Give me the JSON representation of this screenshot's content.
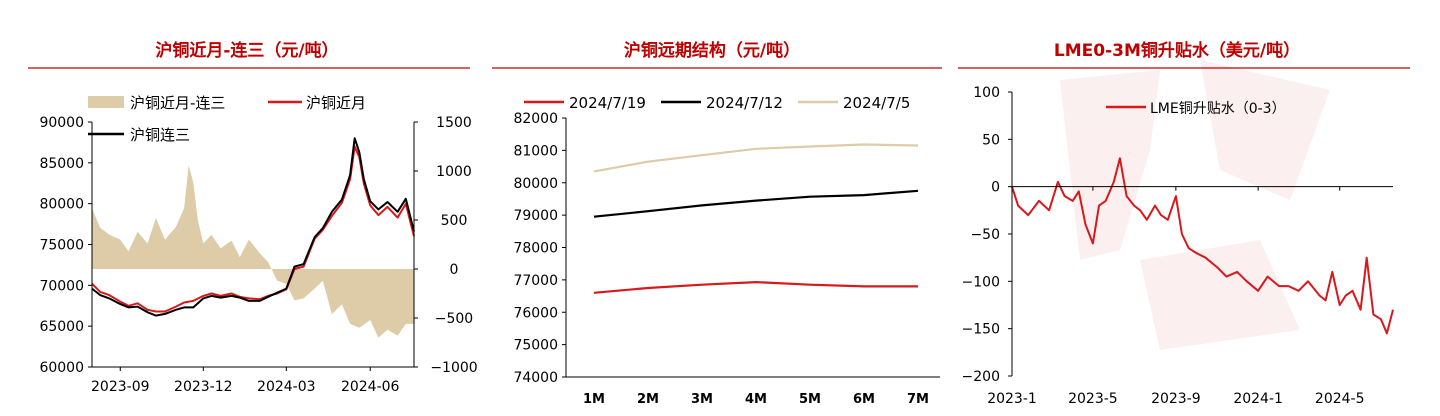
{
  "colors": {
    "title_red": "#C00000",
    "red_line": "#D7191C",
    "black_line": "#000000",
    "beige": "#DECBA8",
    "rule": "#C00000"
  },
  "chart_data": [
    {
      "type": "line",
      "title": "沪铜近月-连三（元/吨）",
      "xlabel": "",
      "ylabel": "",
      "x_ticks": [
        "2023-09",
        "2023-12",
        "2024-03",
        "2024-06"
      ],
      "y_ticks_left": [
        "90000",
        "85000",
        "80000",
        "75000",
        "70000",
        "65000",
        "60000"
      ],
      "y_ticks_right": [
        "1500",
        "1000",
        "500",
        "0",
        "−500",
        "−1000"
      ],
      "ylim_left": [
        60000,
        90000
      ],
      "ylim_right": [
        -1000,
        1500
      ],
      "xlim": [
        "2023-08-01",
        "2024-07-19"
      ],
      "legend_placement": "top-left",
      "series": [
        {
          "name": "沪铜近月-连三",
          "kind": "area",
          "axis": "right",
          "color": "#DECBA8",
          "x": [
            "2023-08-01",
            "2023-08-10",
            "2023-08-20",
            "2023-09-01",
            "2023-09-10",
            "2023-09-20",
            "2023-10-01",
            "2023-10-10",
            "2023-10-20",
            "2023-11-01",
            "2023-11-10",
            "2023-11-15",
            "2023-11-20",
            "2023-11-25",
            "2023-12-01",
            "2023-12-10",
            "2023-12-20",
            "2024-01-01",
            "2024-01-10",
            "2024-01-20",
            "2024-02-01",
            "2024-02-10",
            "2024-02-20",
            "2024-03-01",
            "2024-03-10",
            "2024-03-20",
            "2024-04-01",
            "2024-04-10",
            "2024-04-20",
            "2024-05-01",
            "2024-05-10",
            "2024-05-20",
            "2024-06-01",
            "2024-06-10",
            "2024-06-20",
            "2024-07-01",
            "2024-07-10",
            "2024-07-19"
          ],
          "values": [
            620,
            420,
            350,
            300,
            180,
            380,
            260,
            520,
            300,
            430,
            620,
            1060,
            880,
            500,
            260,
            350,
            210,
            290,
            120,
            300,
            160,
            70,
            -120,
            -150,
            -320,
            -300,
            -200,
            -120,
            -460,
            -360,
            -560,
            -600,
            -520,
            -700,
            -620,
            -680,
            -560,
            -560
          ]
        },
        {
          "name": "沪铜近月",
          "kind": "line",
          "axis": "left",
          "color": "#D7191C",
          "x": [
            "2023-08-01",
            "2023-08-10",
            "2023-08-20",
            "2023-09-01",
            "2023-09-10",
            "2023-09-20",
            "2023-10-01",
            "2023-10-10",
            "2023-10-20",
            "2023-11-01",
            "2023-11-10",
            "2023-11-20",
            "2023-12-01",
            "2023-12-10",
            "2023-12-20",
            "2024-01-01",
            "2024-01-10",
            "2024-01-20",
            "2024-02-01",
            "2024-02-10",
            "2024-02-20",
            "2024-03-01",
            "2024-03-10",
            "2024-03-20",
            "2024-04-01",
            "2024-04-10",
            "2024-04-20",
            "2024-05-01",
            "2024-05-10",
            "2024-05-15",
            "2024-05-20",
            "2024-05-25",
            "2024-06-01",
            "2024-06-10",
            "2024-06-20",
            "2024-07-01",
            "2024-07-10",
            "2024-07-19"
          ],
          "values": [
            70200,
            69200,
            68800,
            68000,
            67500,
            67800,
            67000,
            66800,
            66800,
            67400,
            67900,
            68100,
            68700,
            69000,
            68700,
            69000,
            68600,
            68400,
            68300,
            68700,
            69000,
            69500,
            72000,
            72300,
            75700,
            76800,
            78500,
            80100,
            83000,
            87000,
            85700,
            82500,
            79800,
            78600,
            79600,
            78300,
            80000,
            76000
          ]
        },
        {
          "name": "沪铜连三",
          "kind": "line",
          "axis": "left",
          "color": "#000000",
          "x": [
            "2023-08-01",
            "2023-08-10",
            "2023-08-20",
            "2023-09-01",
            "2023-09-10",
            "2023-09-20",
            "2023-10-01",
            "2023-10-10",
            "2023-10-20",
            "2023-11-01",
            "2023-11-10",
            "2023-11-20",
            "2023-12-01",
            "2023-12-10",
            "2023-12-20",
            "2024-01-01",
            "2024-01-10",
            "2024-01-20",
            "2024-02-01",
            "2024-02-10",
            "2024-02-20",
            "2024-03-01",
            "2024-03-10",
            "2024-03-20",
            "2024-04-01",
            "2024-04-10",
            "2024-04-20",
            "2024-05-01",
            "2024-05-10",
            "2024-05-15",
            "2024-05-20",
            "2024-05-25",
            "2024-06-01",
            "2024-06-10",
            "2024-06-20",
            "2024-07-01",
            "2024-07-10",
            "2024-07-19"
          ],
          "values": [
            69600,
            68800,
            68400,
            67700,
            67300,
            67400,
            66700,
            66300,
            66500,
            67000,
            67300,
            67300,
            68400,
            68700,
            68500,
            68700,
            68500,
            68100,
            68100,
            68600,
            69100,
            69600,
            72300,
            72600,
            75900,
            77000,
            79000,
            80500,
            83500,
            88000,
            86300,
            83000,
            80300,
            79300,
            80200,
            79000,
            80600,
            76600
          ]
        }
      ]
    },
    {
      "type": "line",
      "title": "沪铜远期结构（元/吨）",
      "xlabel": "",
      "ylabel": "",
      "categories": [
        "1M",
        "2M",
        "3M",
        "4M",
        "5M",
        "6M",
        "7M"
      ],
      "y_ticks": [
        "82000",
        "81000",
        "80000",
        "79000",
        "78000",
        "77000",
        "76000",
        "75000",
        "74000"
      ],
      "ylim": [
        74000,
        82000
      ],
      "legend_placement": "top",
      "series": [
        {
          "name": "2024/7/19",
          "color": "#D7191C",
          "values": [
            76600,
            76750,
            76850,
            76930,
            76850,
            76800,
            76800
          ]
        },
        {
          "name": "2024/7/12",
          "color": "#000000",
          "values": [
            78950,
            79120,
            79300,
            79450,
            79570,
            79620,
            79750
          ]
        },
        {
          "name": "2024/7/5",
          "color": "#DECBA8",
          "values": [
            80350,
            80650,
            80850,
            81050,
            81120,
            81180,
            81150
          ]
        }
      ]
    },
    {
      "type": "line",
      "title": "LME0-3M铜升贴水（美元/吨）",
      "xlabel": "",
      "ylabel": "",
      "x_ticks": [
        "2023-1",
        "2023-5",
        "2023-9",
        "2024-1",
        "2024-5"
      ],
      "y_ticks": [
        "100",
        "50",
        "0",
        "−50",
        "−100",
        "−150",
        "−200"
      ],
      "ylim": [
        -200,
        100
      ],
      "xlim": [
        "2023-01-01",
        "2024-07-19"
      ],
      "legend_placement": "top-center",
      "series": [
        {
          "name": "LME铜升贴水（0-3）",
          "color": "#D7191C",
          "x": [
            "2023-01-01",
            "2023-01-10",
            "2023-01-25",
            "2023-02-10",
            "2023-02-25",
            "2023-03-10",
            "2023-03-20",
            "2023-04-01",
            "2023-04-10",
            "2023-04-20",
            "2023-05-01",
            "2023-05-10",
            "2023-05-20",
            "2023-06-01",
            "2023-06-10",
            "2023-06-20",
            "2023-07-01",
            "2023-07-10",
            "2023-07-20",
            "2023-08-01",
            "2023-08-10",
            "2023-08-20",
            "2023-09-01",
            "2023-09-10",
            "2023-09-20",
            "2023-10-01",
            "2023-10-15",
            "2023-11-01",
            "2023-11-15",
            "2023-12-01",
            "2023-12-15",
            "2024-01-01",
            "2024-01-15",
            "2024-02-01",
            "2024-02-15",
            "2024-03-01",
            "2024-03-15",
            "2024-04-01",
            "2024-04-10",
            "2024-04-20",
            "2024-05-01",
            "2024-05-10",
            "2024-05-20",
            "2024-06-01",
            "2024-06-10",
            "2024-06-20",
            "2024-07-01",
            "2024-07-10",
            "2024-07-19"
          ],
          "values": [
            0,
            -20,
            -30,
            -15,
            -25,
            5,
            -10,
            -15,
            -5,
            -40,
            -60,
            -20,
            -15,
            5,
            30,
            -10,
            -20,
            -25,
            -35,
            -20,
            -30,
            -35,
            -10,
            -50,
            -65,
            -70,
            -75,
            -85,
            -95,
            -90,
            -100,
            -110,
            -95,
            -105,
            -105,
            -110,
            -100,
            -115,
            -120,
            -90,
            -125,
            -115,
            -110,
            -130,
            -75,
            -135,
            -140,
            -155,
            -130
          ]
        }
      ]
    }
  ]
}
